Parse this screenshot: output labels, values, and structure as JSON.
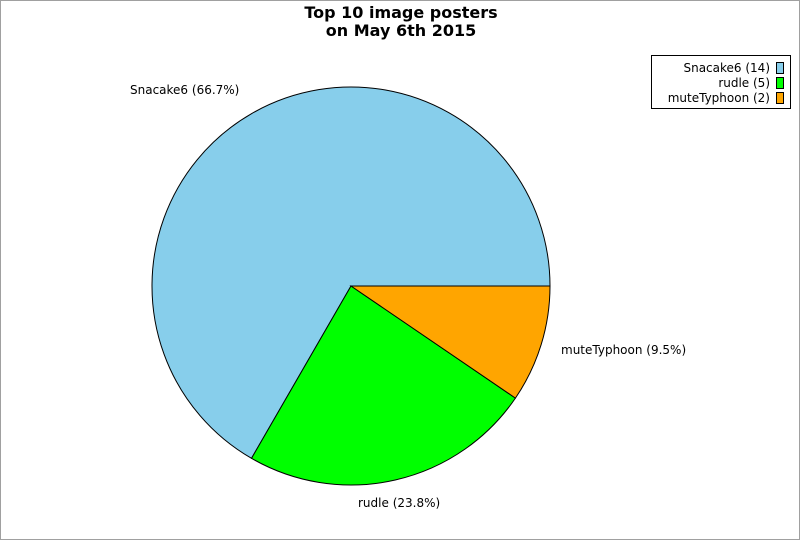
{
  "chart_data": {
    "type": "pie",
    "title_line1": "Top 10 image posters",
    "title_line2": "on May 6th 2015",
    "slices": [
      {
        "name": "Snacake6",
        "value": 14,
        "label": "Snacake6 (66.7%)",
        "legend": "Snacake6 (14)",
        "color": "#87ceeb"
      },
      {
        "name": "rudle",
        "value": 5,
        "label": "rudle (23.8%)",
        "legend": "rudle (5)",
        "color": "#00ff00"
      },
      {
        "name": "muteTyphoon",
        "value": 2,
        "label": "muteTyphoon (9.5%)",
        "legend": "muteTyphoon (2)",
        "color": "#ffa500"
      }
    ],
    "legend_position": "top-right"
  }
}
